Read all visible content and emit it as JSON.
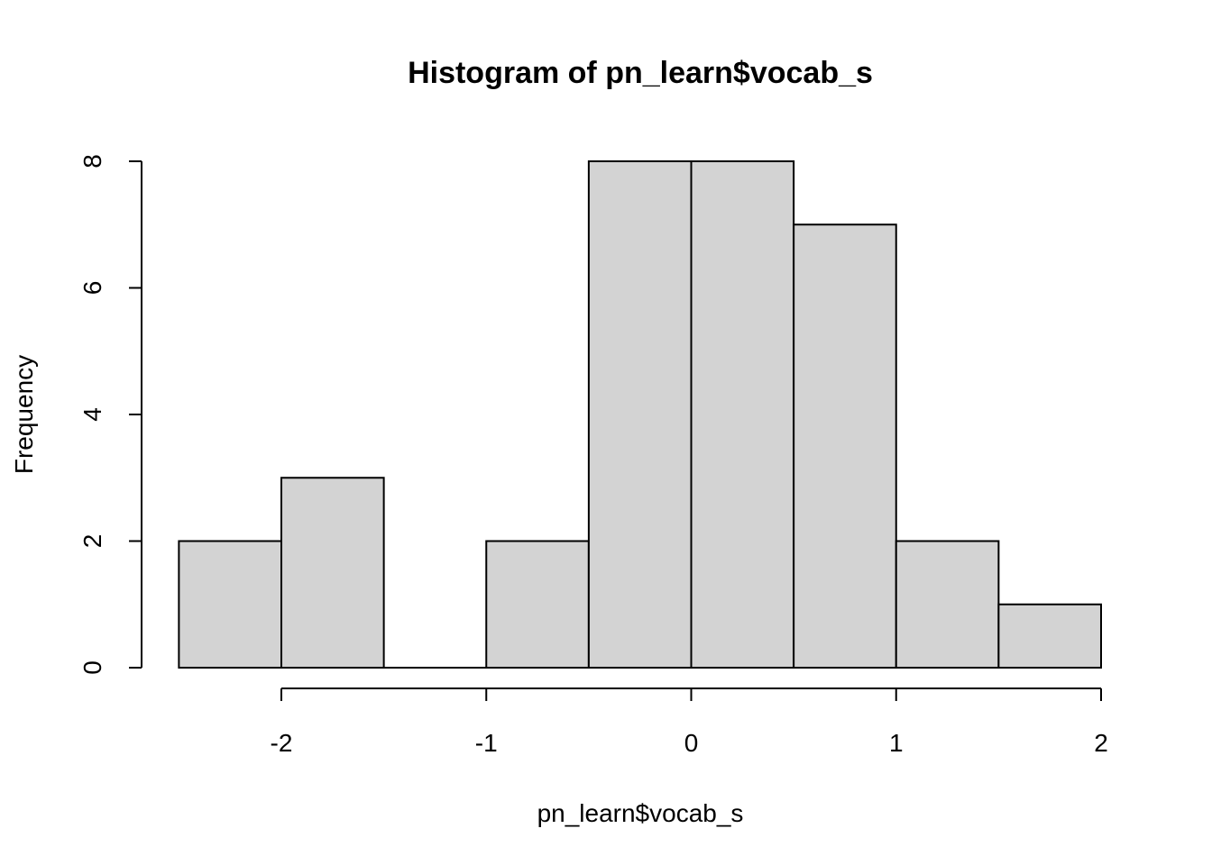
{
  "chart_data": {
    "type": "bar",
    "title": "Histogram of pn_learn$vocab_s",
    "xlabel": "pn_learn$vocab_s",
    "ylabel": "Frequency",
    "bins": [
      {
        "start": -2.5,
        "end": -2.0,
        "count": 2
      },
      {
        "start": -2.0,
        "end": -1.5,
        "count": 3
      },
      {
        "start": -1.5,
        "end": -1.0,
        "count": 0
      },
      {
        "start": -1.0,
        "end": -0.5,
        "count": 2
      },
      {
        "start": -0.5,
        "end": 0.0,
        "count": 8
      },
      {
        "start": 0.0,
        "end": 0.5,
        "count": 8
      },
      {
        "start": 0.5,
        "end": 1.0,
        "count": 7
      },
      {
        "start": 1.0,
        "end": 1.5,
        "count": 2
      },
      {
        "start": 1.5,
        "end": 2.0,
        "count": 1
      }
    ],
    "xlim": [
      -2.5,
      2.0
    ],
    "ylim": [
      0,
      8
    ],
    "x_ticks": [
      -2,
      -1,
      0,
      1,
      2
    ],
    "x_tick_labels": [
      "-2",
      "-1",
      "0",
      "1",
      "2"
    ],
    "y_ticks": [
      0,
      2,
      4,
      6,
      8
    ],
    "y_tick_labels": [
      "0",
      "2",
      "4",
      "6",
      "8"
    ],
    "bar_color": "#d3d3d3",
    "edge_color": "#000000",
    "grid": false
  }
}
